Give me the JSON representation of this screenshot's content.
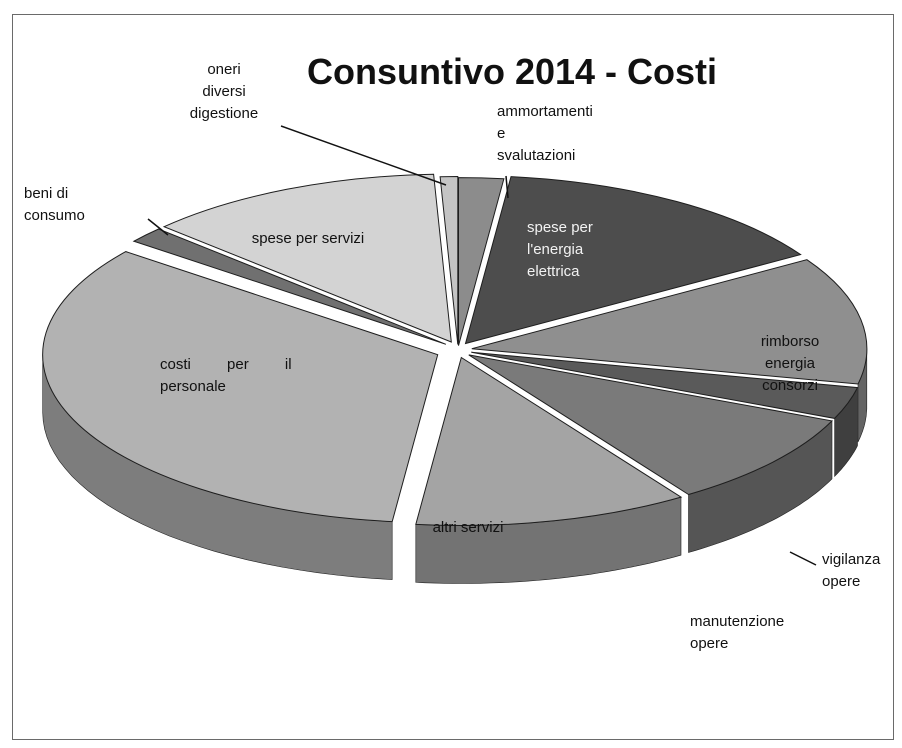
{
  "chart_data": {
    "type": "pie",
    "title": "Consuntivo 2014 - Costi",
    "three_d": true,
    "exploded": true,
    "legend": "none",
    "slices": [
      {
        "label": "ammortamenti e svalutazioni",
        "value": 1.8,
        "color": "#8c8c8c"
      },
      {
        "label": "spese per l'energia elettrica",
        "value": 14.0,
        "color": "#4d4d4d"
      },
      {
        "label": "rimborso energia consorzi",
        "value": 12.0,
        "color": "#8f8f8f"
      },
      {
        "label": "vigilanza opere",
        "value": 3.0,
        "color": "#5a5a5a"
      },
      {
        "label": "manutenzione opere",
        "value": 9.0,
        "color": "#7a7a7a"
      },
      {
        "label": "altri servizi",
        "value": 11.0,
        "color": "#a4a4a4"
      },
      {
        "label": "costi per il personale",
        "value": 33.0,
        "color": "#b2b2b2"
      },
      {
        "label": "beni di consumo",
        "value": 1.5,
        "color": "#707070"
      },
      {
        "label": "spese per servizi",
        "value": 12.0,
        "color": "#d3d3d3"
      },
      {
        "label": "oneri diversi di gestione",
        "value": 0.7,
        "color": "#c4c4c4"
      }
    ],
    "labels_display": [
      [
        "ammortamenti",
        "e",
        "svalutazioni"
      ],
      [
        "spese per",
        "l'energia",
        "elettrica"
      ],
      [
        "rimborso",
        "energia",
        "consorzi"
      ],
      [
        "vigilanza",
        "opere"
      ],
      [
        "manutenzione",
        "opere"
      ],
      [
        "altri servizi"
      ],
      [
        "costi per il",
        "personale"
      ],
      [
        "beni di",
        "consumo"
      ],
      [
        "spese per servizi"
      ],
      [
        "oneri",
        "diversi",
        "digestione"
      ]
    ]
  }
}
